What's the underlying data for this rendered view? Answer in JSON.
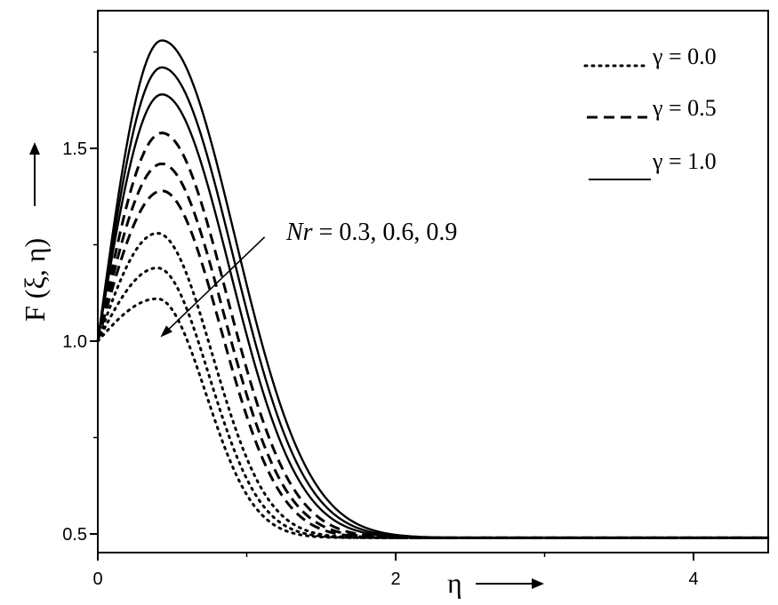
{
  "chart_data": {
    "type": "line",
    "title": "",
    "xlabel": "η",
    "ylabel": "F (ξ, η)",
    "xlim": [
      0,
      4.5
    ],
    "ylim": [
      0.45,
      1.82
    ],
    "xticks": [
      0,
      2,
      4
    ],
    "yticks": [
      0.5,
      1.0,
      1.5
    ],
    "xtick_labels": [
      "0",
      "2",
      "4"
    ],
    "ytick_labels": [
      "0.5",
      "1.0",
      "1.5"
    ],
    "grid": false,
    "legend_position": "top-right",
    "legend": [
      {
        "label": "γ = 0.0",
        "style": "dotted"
      },
      {
        "label": "γ = 0.5",
        "style": "dashed"
      },
      {
        "label": "γ = 1.0",
        "style": "solid"
      }
    ],
    "annotation": {
      "text": "Nr = 0.3, 0.6, 0.9",
      "text_prefix": "Nr",
      "text_suffix": " = 0.3, 0.6, 0.9",
      "arrow_from": [
        1.12,
        1.27
      ],
      "arrow_to": [
        0.42,
        1.01
      ]
    },
    "series": [
      {
        "gamma": 0.0,
        "Nr": 0.3,
        "style": "dotted",
        "peak_x": 0.4,
        "peak_y": 1.28,
        "asymptote": 0.49
      },
      {
        "gamma": 0.0,
        "Nr": 0.6,
        "style": "dotted",
        "peak_x": 0.4,
        "peak_y": 1.19,
        "asymptote": 0.49
      },
      {
        "gamma": 0.0,
        "Nr": 0.9,
        "style": "dotted",
        "peak_x": 0.4,
        "peak_y": 1.11,
        "asymptote": 0.49
      },
      {
        "gamma": 0.5,
        "Nr": 0.3,
        "style": "dashed",
        "peak_x": 0.43,
        "peak_y": 1.54,
        "asymptote": 0.49
      },
      {
        "gamma": 0.5,
        "Nr": 0.6,
        "style": "dashed",
        "peak_x": 0.43,
        "peak_y": 1.46,
        "asymptote": 0.49
      },
      {
        "gamma": 0.5,
        "Nr": 0.9,
        "style": "dashed",
        "peak_x": 0.43,
        "peak_y": 1.39,
        "asymptote": 0.49
      },
      {
        "gamma": 1.0,
        "Nr": 0.3,
        "style": "solid",
        "peak_x": 0.43,
        "peak_y": 1.78,
        "asymptote": 0.49
      },
      {
        "gamma": 1.0,
        "Nr": 0.6,
        "style": "solid",
        "peak_x": 0.43,
        "peak_y": 1.71,
        "asymptote": 0.49
      },
      {
        "gamma": 1.0,
        "Nr": 0.9,
        "style": "solid",
        "peak_x": 0.43,
        "peak_y": 1.64,
        "asymptote": 0.49
      }
    ]
  }
}
